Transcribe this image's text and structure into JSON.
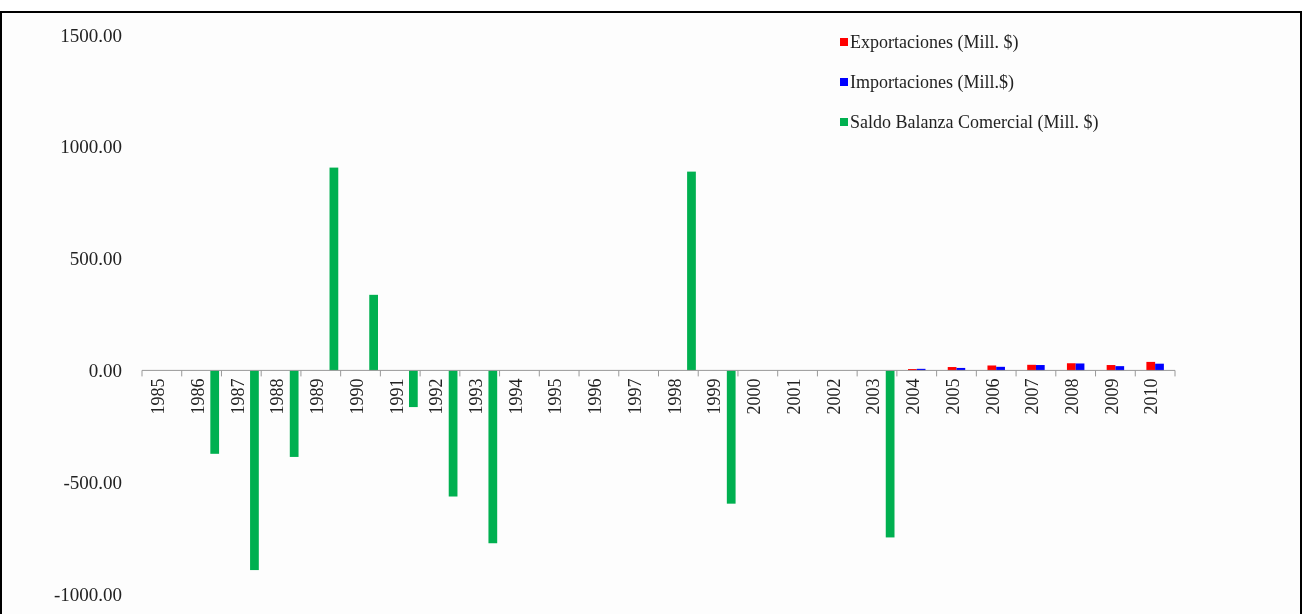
{
  "chart_data": {
    "type": "bar",
    "categories": [
      "1985",
      "1986",
      "1987",
      "1988",
      "1989",
      "1990",
      "1991",
      "1992",
      "1993",
      "1994",
      "1995",
      "1996",
      "1997",
      "1998",
      "1999",
      "2000",
      "2001",
      "2002",
      "2003",
      "2004",
      "2005",
      "2006",
      "2007",
      "2008",
      "2009",
      "2010"
    ],
    "series": [
      {
        "name": "Exportaciones (Mill. $)",
        "color": "#ff0000",
        "values": [
          null,
          null,
          null,
          null,
          null,
          null,
          null,
          null,
          null,
          null,
          null,
          null,
          null,
          null,
          null,
          null,
          null,
          null,
          null,
          6,
          15,
          22,
          25,
          32,
          24,
          38
        ]
      },
      {
        "name": "Importaciones (Mill.$)",
        "color": "#0000ff",
        "values": [
          null,
          null,
          null,
          null,
          null,
          null,
          null,
          null,
          null,
          null,
          null,
          null,
          null,
          null,
          null,
          null,
          null,
          null,
          null,
          7,
          11,
          16,
          24,
          31,
          19,
          30
        ]
      },
      {
        "name": "Saldo Balanza Comercial (Mill. $)",
        "color": "#00b050",
        "values": [
          null,
          -373,
          -893,
          -387,
          907,
          338,
          -164,
          -564,
          -773,
          null,
          null,
          null,
          null,
          889,
          -596,
          null,
          null,
          null,
          -747,
          null,
          null,
          null,
          null,
          null,
          null,
          null
        ]
      }
    ],
    "ylim": [
      -1000,
      1500
    ],
    "yticks": [
      {
        "value": -1000,
        "label": "-1000.00"
      },
      {
        "value": -500,
        "label": "-500.00"
      },
      {
        "value": 0,
        "label": "0.00"
      },
      {
        "value": 500,
        "label": "500.00"
      },
      {
        "value": 1000,
        "label": "1000.00"
      },
      {
        "value": 1500,
        "label": "1500.00"
      }
    ],
    "grid": false,
    "legend": "top right"
  }
}
